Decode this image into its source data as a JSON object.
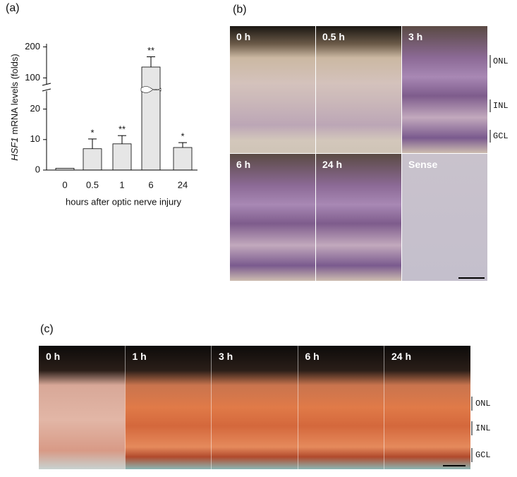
{
  "chart_data": {
    "type": "bar",
    "panel_label": "(a)",
    "y_label_gene": "HSF1",
    "y_label": "mRNA levels (folds)",
    "x_label": "hours after optic nerve injury",
    "categories": [
      "0",
      "0.5",
      "1",
      "6",
      "24"
    ],
    "values": [
      0.6,
      7,
      8.6,
      135,
      7.4
    ],
    "errors": [
      0,
      3.2,
      2.7,
      33,
      1.6
    ],
    "significance": [
      null,
      "*",
      "**",
      "**",
      "*"
    ],
    "color": "#e6e6e6",
    "ylim": [
      0,
      210
    ],
    "ybreak": [
      25,
      85
    ],
    "yticks": [
      0,
      10,
      20,
      100,
      200
    ]
  },
  "panel_b": {
    "label": "(b)",
    "images": [
      "0 h",
      "0.5 h",
      "3 h",
      "6 h",
      "24 h",
      "Sense"
    ],
    "layers": [
      "ONL",
      "INL",
      "GCL"
    ]
  },
  "panel_c": {
    "label": "(c)",
    "images": [
      "0 h",
      "1 h",
      "3 h",
      "6 h",
      "24 h"
    ],
    "layers": [
      "ONL",
      "INL",
      "GCL"
    ]
  }
}
